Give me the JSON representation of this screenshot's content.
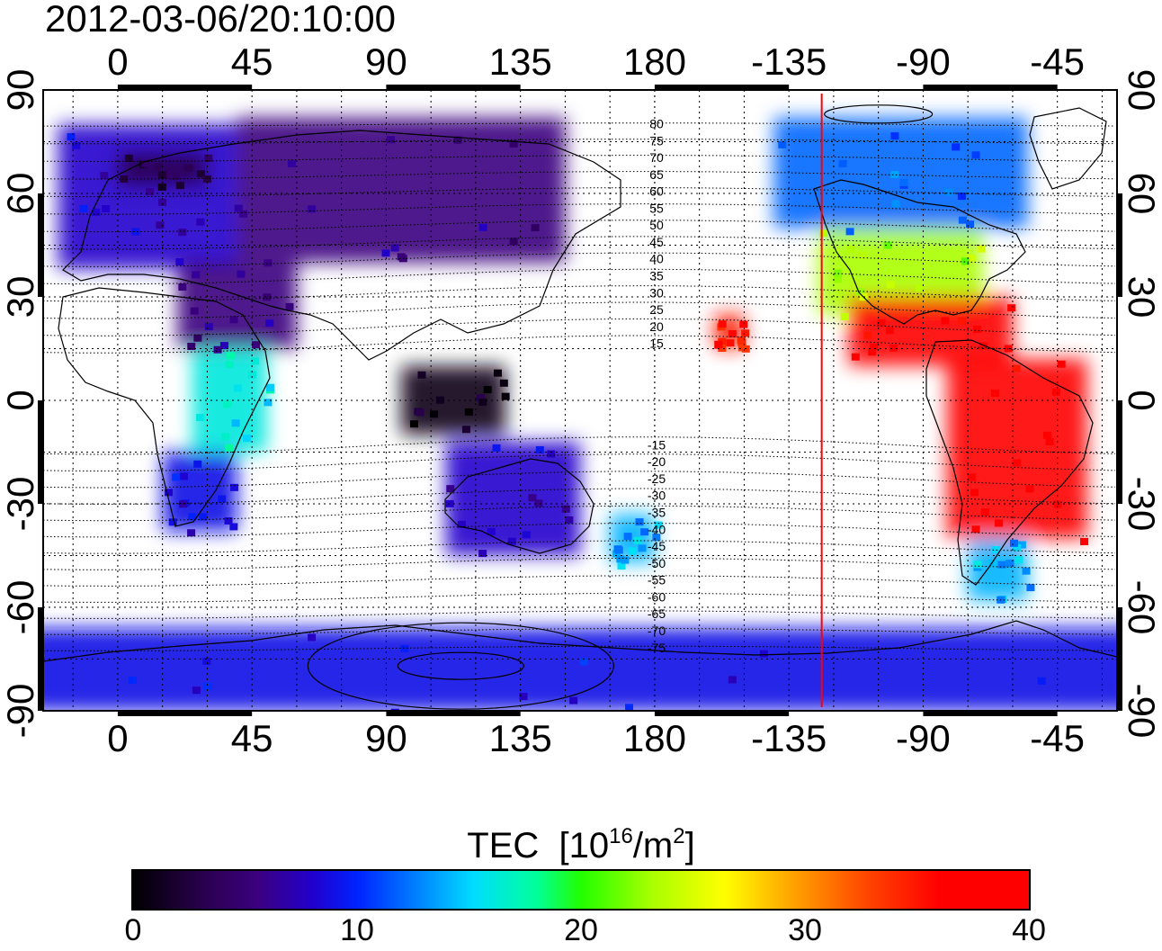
{
  "timestamp": "2012-03-06/20:10:00",
  "lon_ticks": [
    "0",
    "45",
    "90",
    "135",
    "180",
    "-135",
    "-90",
    "-45"
  ],
  "lat_ticks": [
    "90",
    "60",
    "30",
    "0",
    "-30",
    "-60",
    "-90"
  ],
  "colorbar": {
    "title": "TEC",
    "unit_base": "10",
    "unit_exp": "16",
    "unit_mid": "/m",
    "unit_exp2": "2",
    "tick_labels": [
      "0",
      "10",
      "20",
      "30",
      "40"
    ],
    "min": 0,
    "max": 40
  },
  "contour_labels": [
    "80",
    "75",
    "70",
    "65",
    "60",
    "55",
    "50",
    "45",
    "40",
    "35",
    "30",
    "25",
    "20",
    "15",
    "-15",
    "-20",
    "-25",
    "-30",
    "-35",
    "-40",
    "-45",
    "-50",
    "-55",
    "-60",
    "-65",
    "-70",
    "-75"
  ],
  "terminator_longitude": -124,
  "colors": {
    "terminator": "#ff0000"
  },
  "tec_regions": [
    {
      "name": "europe",
      "lon": [
        -20,
        40
      ],
      "lat": [
        38,
        80
      ],
      "tec": 8
    },
    {
      "name": "scandinavia",
      "lon": [
        0,
        30
      ],
      "lat": [
        62,
        72
      ],
      "tec": 3
    },
    {
      "name": "russia",
      "lon": [
        40,
        150
      ],
      "lat": [
        40,
        82
      ],
      "tec": 6
    },
    {
      "name": "middle-east",
      "lon": [
        20,
        60
      ],
      "lat": [
        15,
        40
      ],
      "tec": 6
    },
    {
      "name": "africa-east",
      "lon": [
        25,
        50
      ],
      "lat": [
        -15,
        15
      ],
      "tec": 16
    },
    {
      "name": "southern-africa",
      "lon": [
        15,
        40
      ],
      "lat": [
        -38,
        -15
      ],
      "tec": 9
    },
    {
      "name": "se-asia",
      "lon": [
        95,
        130
      ],
      "lat": [
        -10,
        10
      ],
      "tec": 1
    },
    {
      "name": "australia",
      "lon": [
        110,
        155
      ],
      "lat": [
        -45,
        -12
      ],
      "tec": 8
    },
    {
      "name": "new-zealand",
      "lon": [
        165,
        180
      ],
      "lat": [
        -47,
        -33
      ],
      "tec": 14
    },
    {
      "name": "canada",
      "lon": [
        -140,
        -55
      ],
      "lat": [
        50,
        82
      ],
      "tec": 12
    },
    {
      "name": "usa",
      "lon": [
        -125,
        -70
      ],
      "lat": [
        25,
        50
      ],
      "tec": 23
    },
    {
      "name": "central-america",
      "lon": [
        -115,
        -60
      ],
      "lat": [
        10,
        30
      ],
      "tec": 37
    },
    {
      "name": "south-america",
      "lon": [
        -82,
        -35
      ],
      "lat": [
        -40,
        12
      ],
      "tec": 39
    },
    {
      "name": "patagonia",
      "lon": [
        -75,
        -55
      ],
      "lat": [
        -58,
        -40
      ],
      "tec": 14
    },
    {
      "name": "pacific-islands",
      "lon": [
        -160,
        -150
      ],
      "lat": [
        15,
        25
      ],
      "tec": 35
    },
    {
      "name": "antarctica",
      "lon": [
        -180,
        180
      ],
      "lat": [
        -90,
        -66
      ],
      "tec": 9
    }
  ]
}
